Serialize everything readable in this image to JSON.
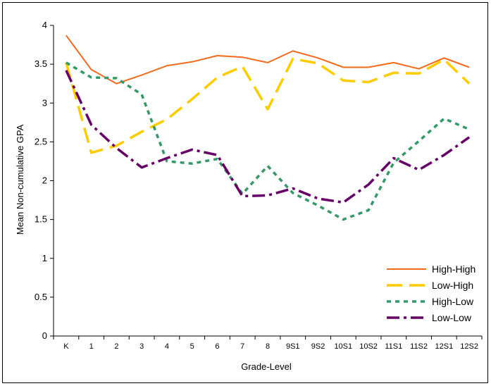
{
  "chart_data": {
    "type": "line",
    "title": "",
    "xlabel": "Grade-Level",
    "ylabel": "Mean Non-cumulative GPA",
    "ylim": [
      0,
      4
    ],
    "yticks": [
      "0",
      "0.5",
      "1",
      "1.5",
      "2",
      "2.5",
      "3",
      "3.5",
      "4"
    ],
    "categories": [
      "K",
      "1",
      "2",
      "3",
      "4",
      "5",
      "6",
      "7",
      "8",
      "9S1",
      "9S2",
      "10S1",
      "10S2",
      "11S1",
      "11S2",
      "12S1",
      "12S2"
    ],
    "grid": false,
    "legend_position": "bottom-right",
    "series": [
      {
        "name": "High-High",
        "color": "#F26B1D",
        "dash": "solid",
        "values": [
          3.87,
          3.43,
          3.25,
          3.36,
          3.48,
          3.53,
          3.61,
          3.59,
          3.52,
          3.67,
          3.58,
          3.46,
          3.46,
          3.52,
          3.44,
          3.58,
          3.46
        ]
      },
      {
        "name": "Low-High",
        "color": "#FFCC00",
        "dash": "long",
        "values": [
          3.52,
          2.36,
          2.45,
          2.63,
          2.79,
          3.05,
          3.33,
          3.47,
          2.92,
          3.57,
          3.51,
          3.29,
          3.27,
          3.39,
          3.38,
          3.56,
          3.25
        ]
      },
      {
        "name": "High-Low",
        "color": "#339966",
        "dash": "short",
        "values": [
          3.52,
          3.33,
          3.32,
          3.11,
          2.25,
          2.22,
          2.28,
          1.83,
          2.19,
          1.84,
          1.68,
          1.5,
          1.62,
          2.23,
          2.51,
          2.8,
          2.66
        ]
      },
      {
        "name": "Low-Low",
        "color": "#660066",
        "dash": "dashdot",
        "values": [
          3.42,
          2.72,
          2.42,
          2.17,
          2.29,
          2.4,
          2.33,
          1.8,
          1.81,
          1.9,
          1.77,
          1.72,
          1.95,
          2.29,
          2.14,
          2.33,
          2.56
        ]
      }
    ]
  }
}
